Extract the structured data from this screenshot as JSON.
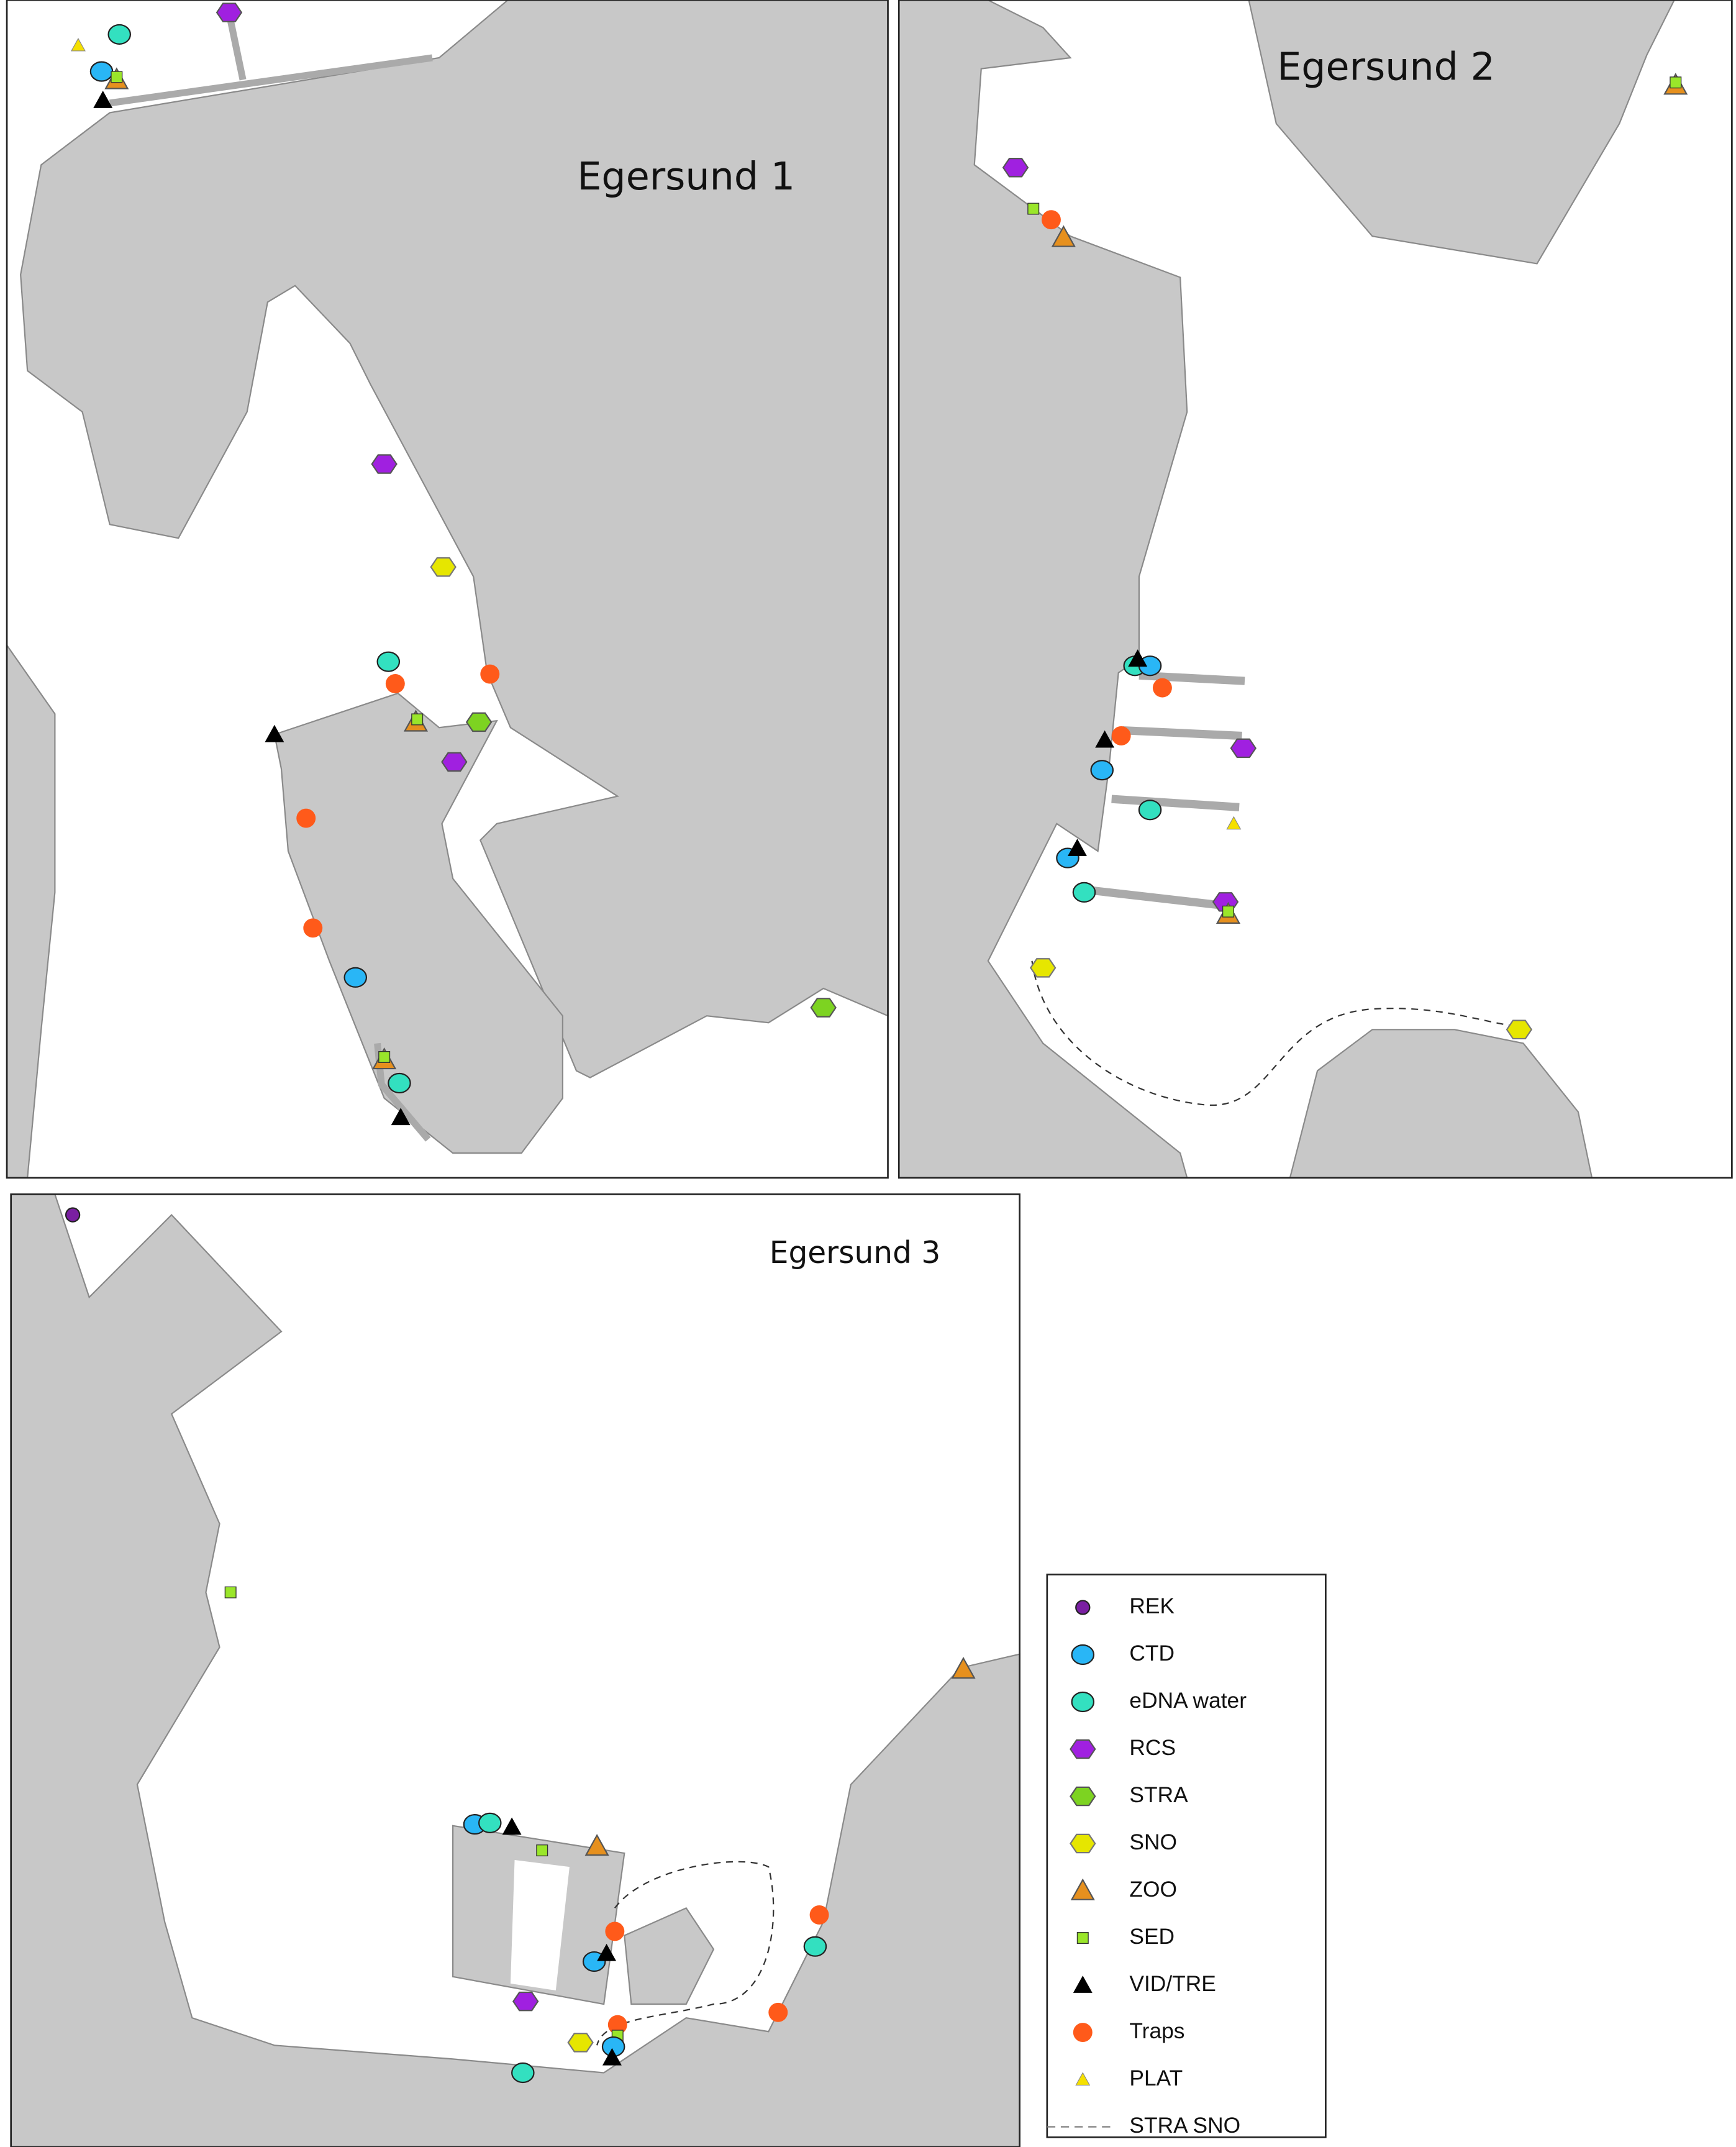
{
  "panels": [
    {
      "title": "Egersund 1"
    },
    {
      "title": "Egersund 2"
    },
    {
      "title": "Egersund 3"
    }
  ],
  "legend": {
    "items": [
      {
        "label": "REK"
      },
      {
        "label": "CTD"
      },
      {
        "label": "eDNA water"
      },
      {
        "label": "RCS"
      },
      {
        "label": "STRA"
      },
      {
        "label": "SNO"
      },
      {
        "label": "ZOO"
      },
      {
        "label": "SED"
      },
      {
        "label": "VID/TRE"
      },
      {
        "label": "Traps"
      },
      {
        "label": "PLAT"
      },
      {
        "label": "STRA SNO"
      }
    ]
  }
}
